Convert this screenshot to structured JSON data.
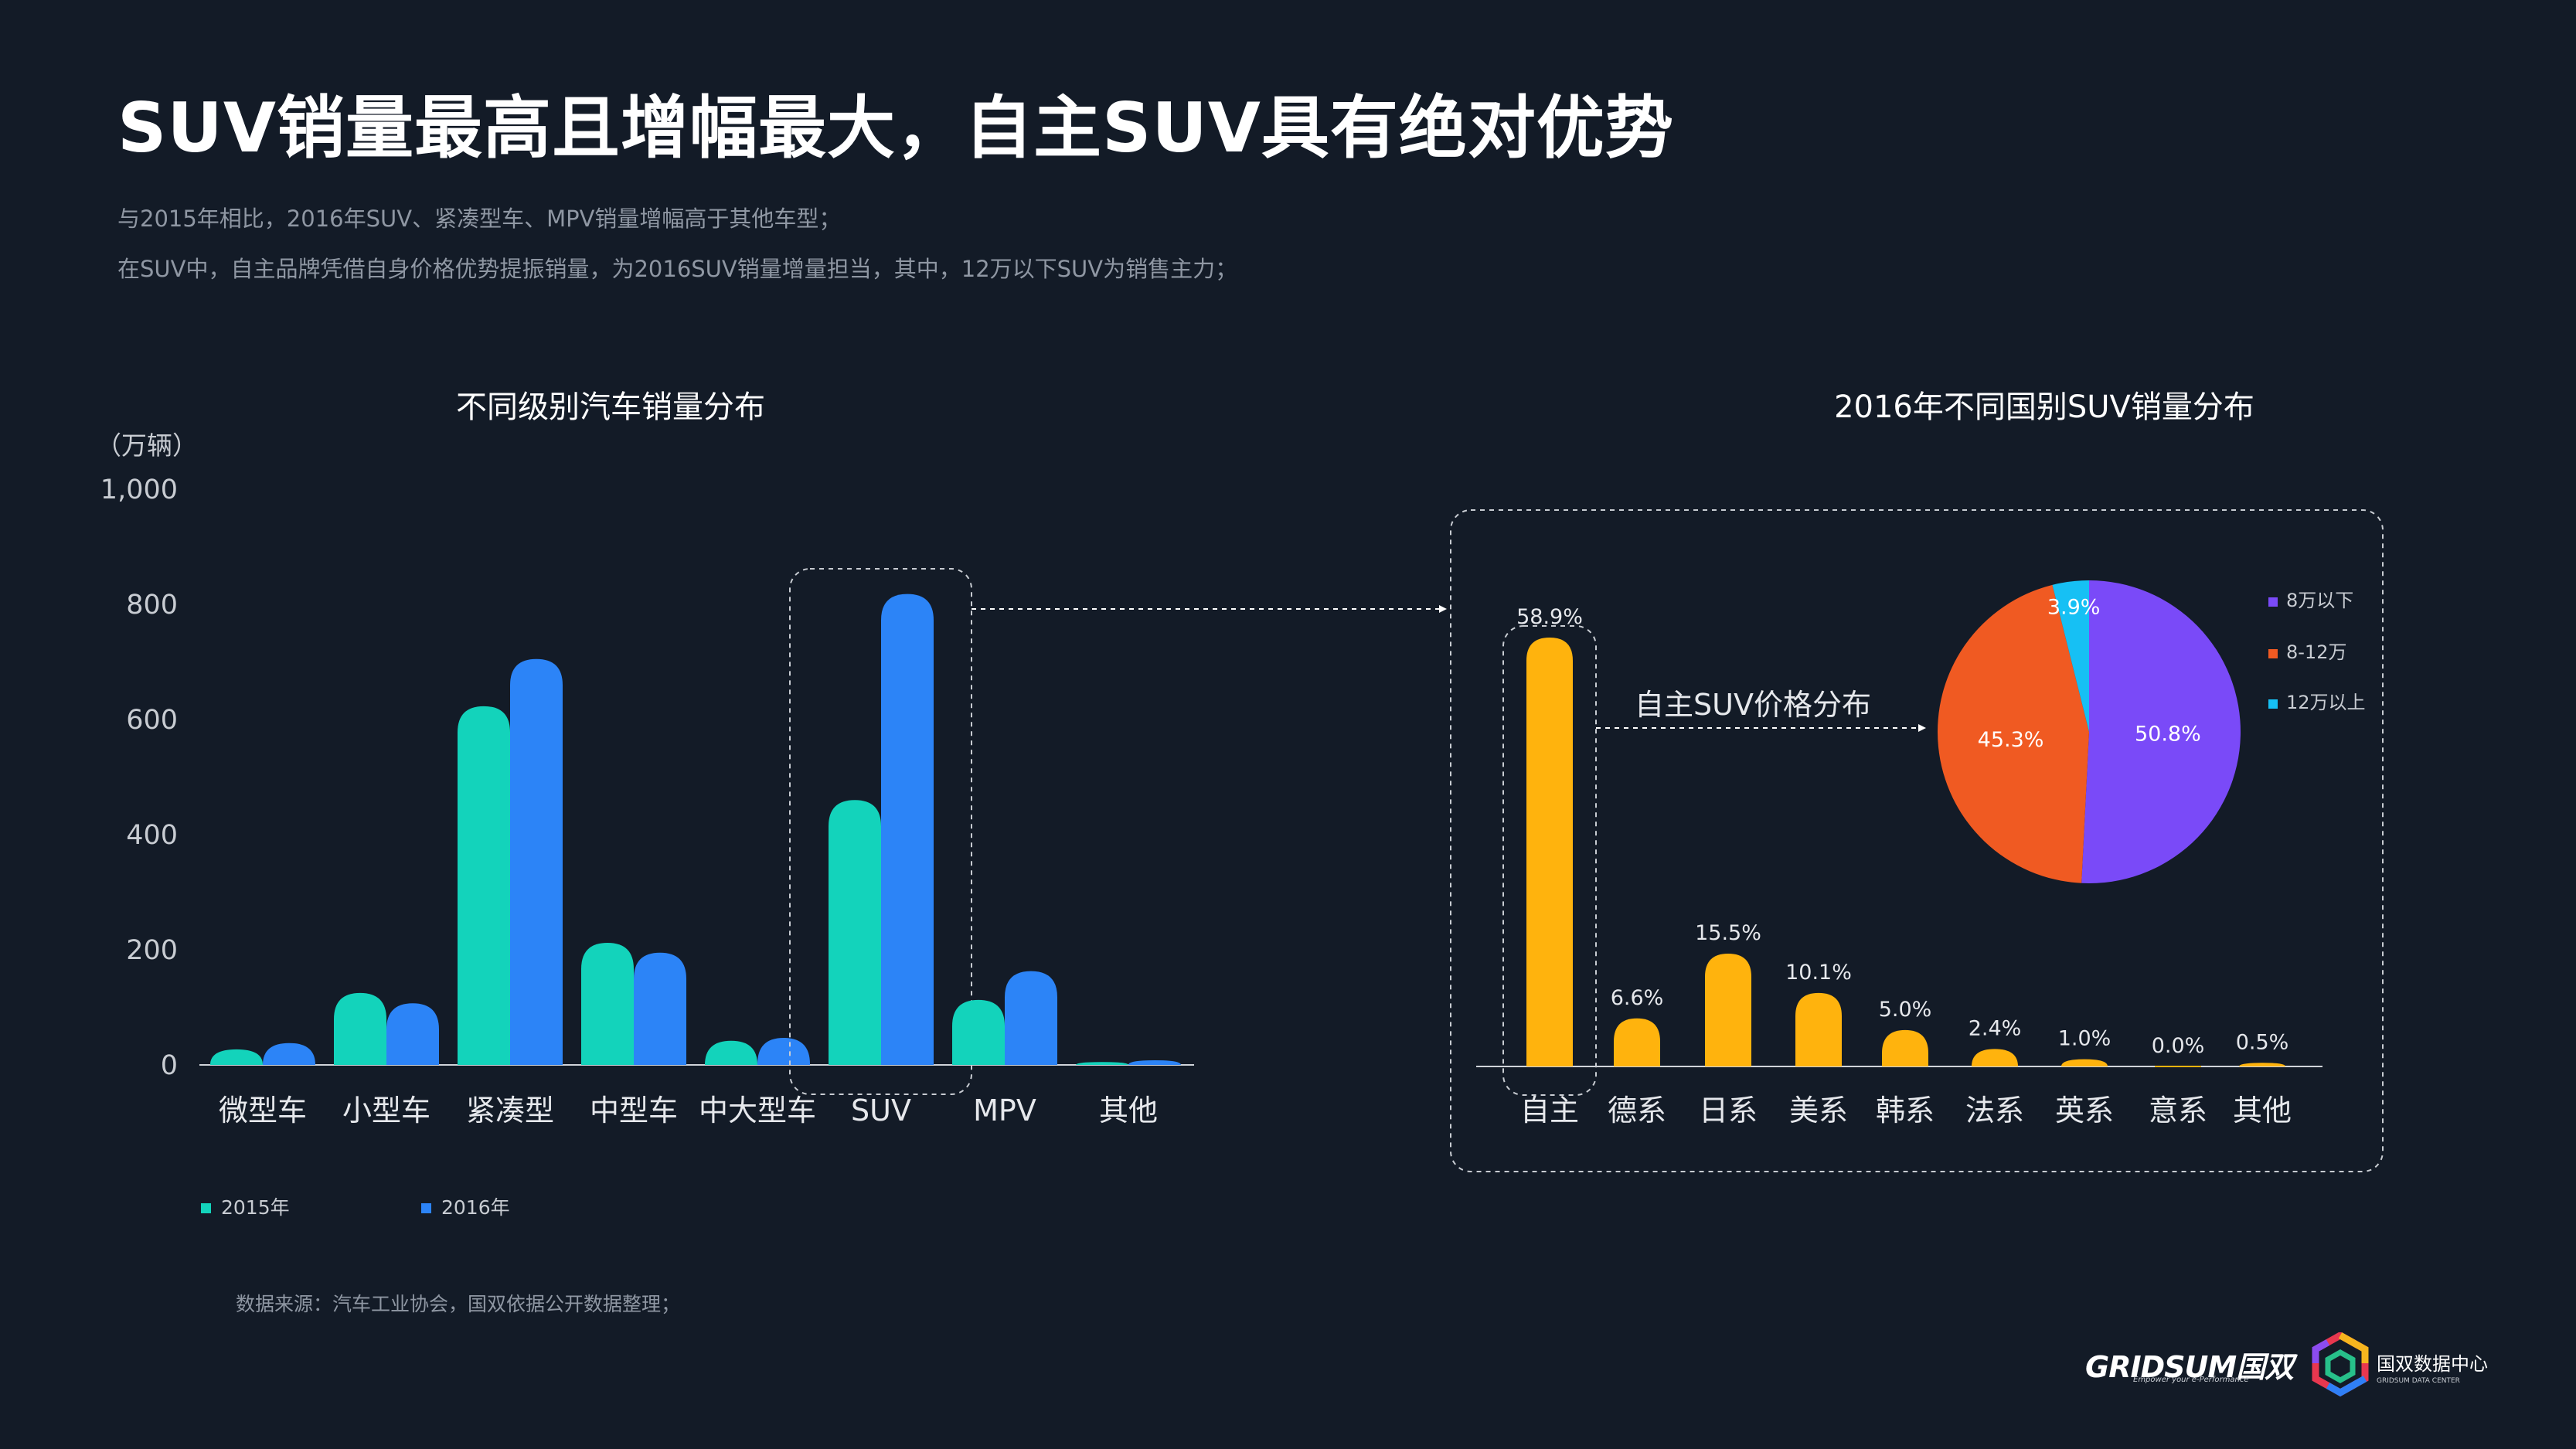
{
  "page": {
    "title": "SUV销量最高且增幅最大，自主SUV具有绝对优势",
    "subtitle_lines": [
      "与2015年相比，2016年SUV、紧凑型车、MPV销量增幅高于其他车型；",
      "在SUV中，自主品牌凭借自身价格优势提振销量，为2016SUV销量增量担当，其中，12万以下SUV为销售主力；"
    ],
    "source": "数据来源：汽车工业协会，国双依据公开数据整理；",
    "logos": {
      "gridsum": "GRIDSUM国双",
      "gridsum_tagline": "Empower your e-Performance",
      "gdc_cn": "国双数据中心",
      "gdc_en": "GRIDSUM DATA CENTER"
    }
  },
  "colors": {
    "background": "#131b27",
    "s2015": "#13d3bb",
    "s2016": "#2c84f7",
    "country_bar": "#ffb30d",
    "pie_low": "#7a4af8",
    "pie_mid": "#f05a22",
    "pie_high": "#16c0f4"
  },
  "chart_data": [
    {
      "type": "bar",
      "title": "不同级别汽车销量分布",
      "ylabel": "（万辆）",
      "ylim": [
        0,
        1000
      ],
      "yticks": [
        0,
        200,
        400,
        600,
        800,
        1000
      ],
      "ytick_labels": [
        "0",
        "200",
        "400",
        "600",
        "800",
        "1,000"
      ],
      "categories": [
        "微型车",
        "小型车",
        "紧凑型",
        "中型车",
        "中大型车",
        "SUV",
        "MPV",
        "其他"
      ],
      "series": [
        {
          "name": "2015年",
          "values": [
            27,
            125,
            623,
            212,
            42,
            460,
            113,
            5
          ]
        },
        {
          "name": "2016年",
          "values": [
            38,
            107,
            705,
            195,
            47,
            818,
            163,
            8
          ]
        }
      ],
      "legend_position": "bottom-left",
      "highlight_category": "SUV"
    },
    {
      "type": "bar",
      "title": "2016年不同国别SUV销量分布",
      "categories": [
        "自主",
        "德系",
        "日系",
        "美系",
        "韩系",
        "法系",
        "英系",
        "意系",
        "其他"
      ],
      "values": [
        58.9,
        6.6,
        15.5,
        10.1,
        5.0,
        2.4,
        1.0,
        0.0,
        0.5
      ],
      "value_labels": [
        "58.9%",
        "6.6%",
        "15.5%",
        "10.1%",
        "5.0%",
        "2.4%",
        "1.0%",
        "0.0%",
        "0.5%"
      ],
      "unit": "%",
      "highlight_category": "自主"
    },
    {
      "type": "pie",
      "title": "自主SUV价格分布",
      "labels": [
        "8万以下",
        "8-12万",
        "12万以上"
      ],
      "values": [
        50.8,
        45.3,
        3.9
      ],
      "value_labels": [
        "50.8%",
        "45.3%",
        "3.9%"
      ],
      "legend_position": "right"
    }
  ]
}
